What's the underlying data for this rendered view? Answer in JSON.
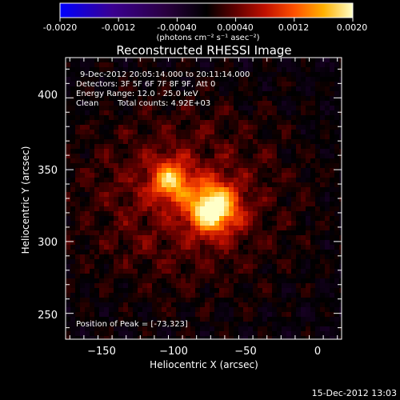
{
  "colorbar": {
    "ticks": [
      "-0.0020",
      "-0.0012",
      "-0.00040",
      "0.00040",
      "0.0012",
      "0.0020"
    ],
    "units": "(photons cm⁻² s⁻¹ asec⁻²)",
    "range": [
      -0.002,
      0.002
    ]
  },
  "title": "Reconstructed RHESSI Image",
  "info": {
    "time": "9-Dec-2012 20:05:14.000 to 20:11:14.000",
    "detectors": "Detectors: 3F 5F 6F 7F 8F 9F, Att 0",
    "energy": "Energy Range: 12.0 - 25.0 keV",
    "clean": "Clean",
    "counts": "Total counts: 4.92E+03"
  },
  "peak": "Position of Peak = [-73,323]",
  "axes": {
    "xlabel": "Heliocentric X (arcsec)",
    "ylabel": "Heliocentric Y (arcsec)",
    "xticks": [
      "−150",
      "−100",
      "−50",
      "0"
    ],
    "yticks": [
      "400",
      "350",
      "300",
      "250"
    ],
    "xrange": [
      -178,
      18
    ],
    "yrange": [
      232,
      428
    ]
  },
  "footer": "15-Dec-2012 13:03",
  "palette": {
    "background": "#000000",
    "foreground": "#ffffff",
    "min_color": "#0000ff",
    "max_color": "#ffffff",
    "mid_color": "#000000"
  },
  "sources": [
    {
      "x": -73,
      "y": 323,
      "amplitude": 0.00195
    },
    {
      "x": -104,
      "y": 342,
      "amplitude": 0.0013
    }
  ]
}
